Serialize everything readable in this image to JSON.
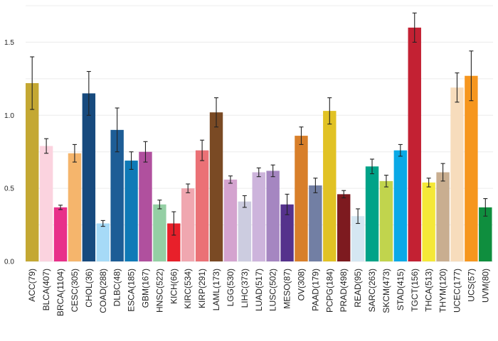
{
  "chart_data": {
    "type": "bar",
    "title": "",
    "xlabel": "",
    "ylabel": "",
    "ylim": [
      0,
      1.75
    ],
    "yticks": [
      "0.0",
      "0.5",
      "1.0",
      "1.5"
    ],
    "grid": true,
    "categories": [
      "ACC(79)",
      "BLCA(407)",
      "BRCA(1104)",
      "CESC(305)",
      "CHOL(36)",
      "COAD(288)",
      "DLBC(48)",
      "ESCA(185)",
      "GBM(167)",
      "HNSC(522)",
      "KICH(66)",
      "KIRC(534)",
      "KIRP(291)",
      "LAML(173)",
      "LGG(530)",
      "LIHC(373)",
      "LUAD(517)",
      "LUSC(502)",
      "MESO(87)",
      "OV(308)",
      "PAAD(179)",
      "PCPG(184)",
      "PRAD(498)",
      "READ(95)",
      "SARC(263)",
      "SKCM(473)",
      "STAD(415)",
      "TGCT(156)",
      "THCA(513)",
      "THYM(120)",
      "UCEC(177)",
      "UCS(57)",
      "UVM(80)"
    ],
    "values": [
      1.22,
      0.79,
      0.37,
      0.74,
      1.15,
      0.26,
      0.9,
      0.69,
      0.75,
      0.39,
      0.26,
      0.5,
      0.76,
      1.02,
      0.56,
      0.41,
      0.61,
      0.62,
      0.39,
      0.86,
      0.52,
      1.03,
      0.46,
      0.31,
      0.65,
      0.55,
      0.76,
      1.6,
      0.54,
      0.61,
      1.19,
      1.27,
      0.37
    ],
    "errors": [
      0.18,
      0.05,
      0.015,
      0.06,
      0.15,
      0.02,
      0.15,
      0.06,
      0.07,
      0.03,
      0.08,
      0.03,
      0.07,
      0.1,
      0.025,
      0.04,
      0.03,
      0.04,
      0.07,
      0.06,
      0.05,
      0.09,
      0.025,
      0.05,
      0.05,
      0.04,
      0.04,
      0.1,
      0.03,
      0.06,
      0.1,
      0.17,
      0.06
    ],
    "colors": [
      "#c4a833",
      "#fbd3df",
      "#e8308a",
      "#f5b56c",
      "#174a7e",
      "#a6daf7",
      "#1d5d96",
      "#0f7ab7",
      "#b0509e",
      "#94cfa4",
      "#e8202a",
      "#f0a7b0",
      "#eb7176",
      "#7a4a24",
      "#d4a3cf",
      "#cccce0",
      "#cdb4dc",
      "#a586c1",
      "#55328c",
      "#d87f2a",
      "#727fa4",
      "#e1c224",
      "#7d1a1f",
      "#d5e7f2",
      "#00a388",
      "#c1d44d",
      "#0aa9e6",
      "#c32133",
      "#f5e838",
      "#c9ae90",
      "#f7dcbc",
      "#f6961e",
      "#0f8e3e"
    ]
  }
}
